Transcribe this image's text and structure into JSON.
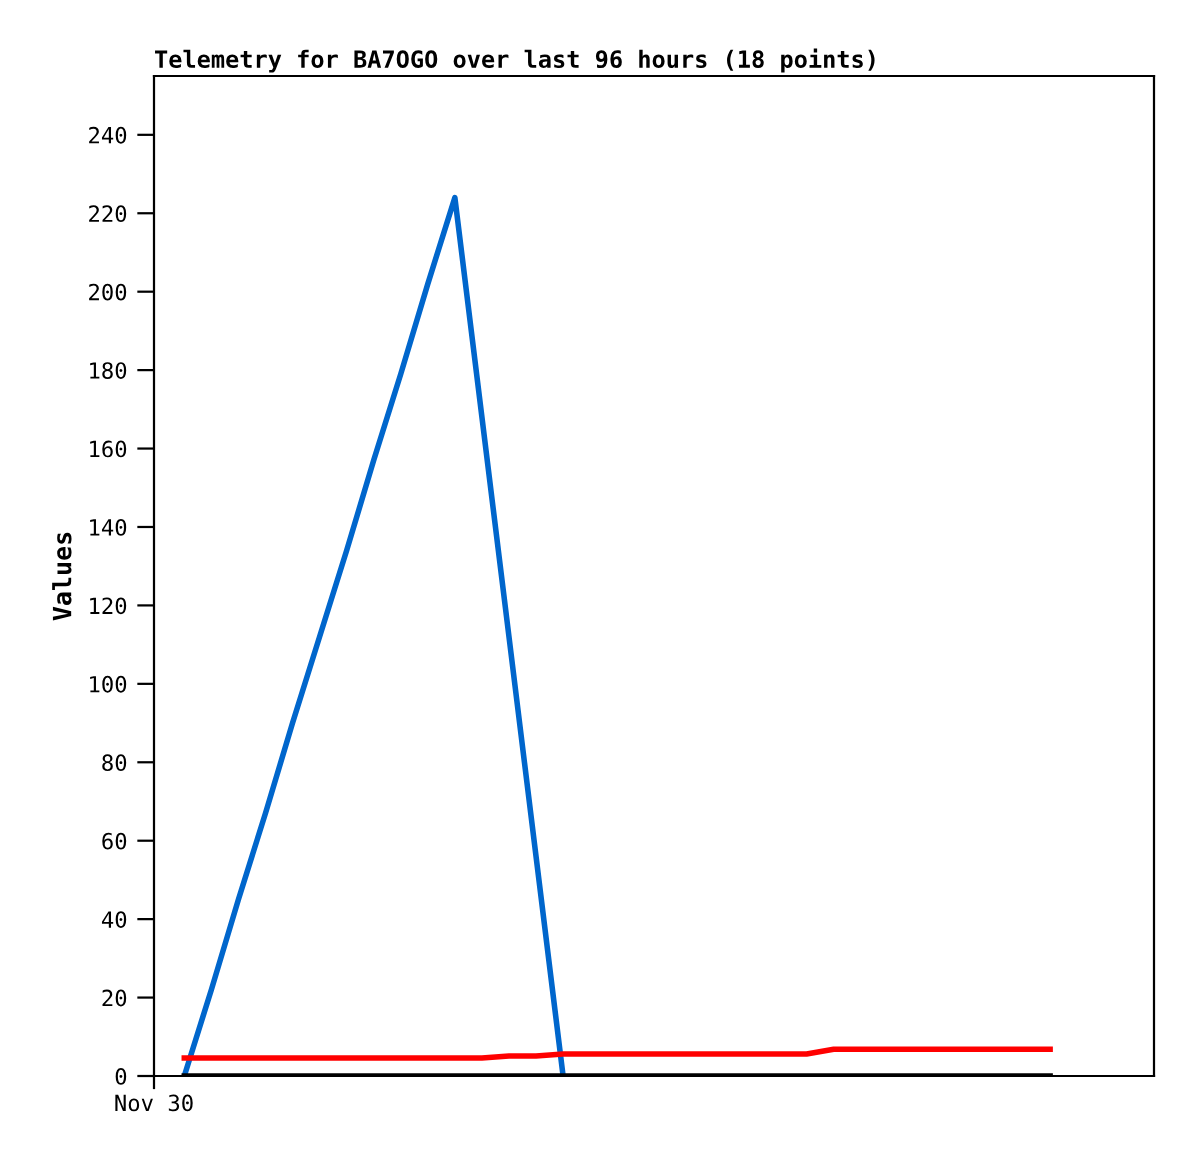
{
  "chart_data": {
    "type": "line",
    "title": "Telemetry for BA7OGO over last 96 hours (18 points)",
    "ylabel": "Values",
    "annotations": [
      "Nov 30"
    ],
    "categories": [
      null,
      null,
      null,
      null,
      null,
      null,
      null,
      null,
      null,
      null,
      null,
      null,
      null,
      null,
      null,
      null,
      null,
      null,
      null,
      null,
      null,
      null,
      null,
      null,
      null,
      null,
      null,
      null,
      null,
      null,
      null,
      null,
      null
    ],
    "ylim": [
      0,
      255
    ],
    "yticks": [
      0,
      20,
      40,
      60,
      80,
      100,
      120,
      140,
      160,
      180,
      200,
      220,
      240
    ],
    "grid": false,
    "legend": false,
    "marker": "none",
    "line_style": "solid",
    "series": [
      {
        "color": "#0066cc",
        "values": [
          0,
          22,
          45,
          67,
          90,
          112,
          134,
          157,
          179,
          202,
          224,
          168,
          112,
          56,
          0,
          null,
          null,
          null,
          null,
          null,
          null,
          null,
          null,
          null,
          null,
          null,
          null,
          null,
          null,
          null,
          null,
          null,
          null
        ]
      },
      {
        "color": "#ff0000",
        "values": [
          4.6,
          4.6,
          4.6,
          4.6,
          4.6,
          4.6,
          4.6,
          4.6,
          4.6,
          4.6,
          4.6,
          4.6,
          5.1,
          5.1,
          5.6,
          5.6,
          5.6,
          5.6,
          5.6,
          5.6,
          5.6,
          5.6,
          5.6,
          5.6,
          6.8,
          6.8,
          6.8,
          6.8,
          6.8,
          6.8,
          6.8,
          6.8,
          6.8
        ]
      },
      {
        "color": "#000000",
        "values": [
          0,
          0,
          0,
          0,
          0,
          0,
          0,
          0,
          0,
          0,
          0,
          0,
          0,
          0,
          0,
          0,
          0,
          0,
          0,
          0,
          0,
          0,
          0,
          0,
          0,
          0,
          0,
          0,
          0,
          0,
          0,
          0,
          0
        ]
      }
    ]
  }
}
